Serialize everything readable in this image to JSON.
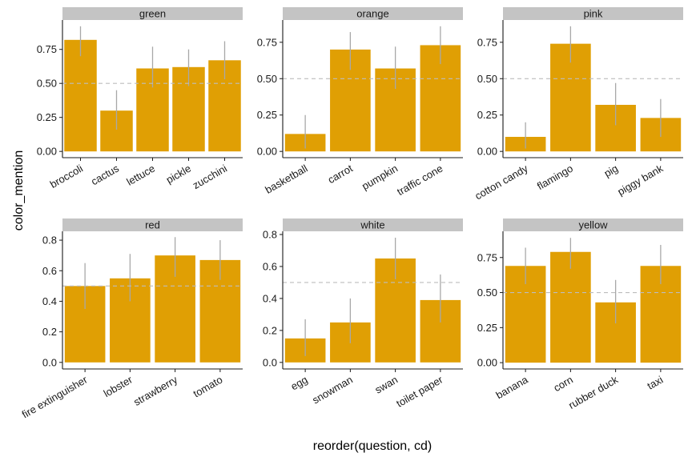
{
  "figure": {
    "xlabel": "reorder(question, cd)",
    "ylabel": "color_mention"
  },
  "colors": {
    "bar": "#E09F04",
    "errorbar": "#A8A8A8",
    "refline": "#BDBDBD",
    "strip": "#C4C4C4",
    "axis": "#1a1a1a"
  },
  "chart_data": [
    {
      "type": "bar",
      "facet": "green",
      "categories": [
        "broccoli",
        "cactus",
        "lettuce",
        "pickle",
        "zucchini"
      ],
      "values": [
        0.82,
        0.3,
        0.61,
        0.62,
        0.67
      ],
      "error_low": [
        0.7,
        0.16,
        0.47,
        0.48,
        0.53
      ],
      "error_high": [
        0.92,
        0.45,
        0.77,
        0.75,
        0.81
      ],
      "reference_line": 0.5,
      "yticks": [
        0.0,
        0.25,
        0.5,
        0.75
      ],
      "ytick_labels": [
        "0.00",
        "0.25",
        "0.50",
        "0.75"
      ],
      "ylim": [
        -0.046,
        0.966
      ]
    },
    {
      "type": "bar",
      "facet": "orange",
      "categories": [
        "basketball",
        "carrot",
        "pumpkin",
        "traffic cone"
      ],
      "values": [
        0.12,
        0.7,
        0.57,
        0.73
      ],
      "error_low": [
        0.02,
        0.56,
        0.43,
        0.6
      ],
      "error_high": [
        0.25,
        0.82,
        0.72,
        0.86
      ],
      "reference_line": 0.5,
      "yticks": [
        0.0,
        0.25,
        0.5,
        0.75
      ],
      "ytick_labels": [
        "0.00",
        "0.25",
        "0.50",
        "0.75"
      ],
      "ylim": [
        -0.043,
        0.903
      ]
    },
    {
      "type": "bar",
      "facet": "pink",
      "categories": [
        "cotton candy",
        "flamingo",
        "pig",
        "piggy bank"
      ],
      "values": [
        0.1,
        0.74,
        0.32,
        0.23
      ],
      "error_low": [
        0.02,
        0.61,
        0.18,
        0.1
      ],
      "error_high": [
        0.2,
        0.86,
        0.47,
        0.36
      ],
      "reference_line": 0.5,
      "yticks": [
        0.0,
        0.25,
        0.5,
        0.75
      ],
      "ytick_labels": [
        "0.00",
        "0.25",
        "0.50",
        "0.75"
      ],
      "ylim": [
        -0.043,
        0.903
      ]
    },
    {
      "type": "bar",
      "facet": "red",
      "categories": [
        "fire extinguisher",
        "lobster",
        "strawberry",
        "tomato"
      ],
      "values": [
        0.5,
        0.55,
        0.7,
        0.67
      ],
      "error_low": [
        0.35,
        0.4,
        0.56,
        0.54
      ],
      "error_high": [
        0.65,
        0.71,
        0.82,
        0.8
      ],
      "reference_line": 0.5,
      "yticks": [
        0.0,
        0.2,
        0.4,
        0.6,
        0.8
      ],
      "ytick_labels": [
        "0.0",
        "0.2",
        "0.4",
        "0.6",
        "0.8"
      ],
      "ylim": [
        -0.043,
        0.858
      ]
    },
    {
      "type": "bar",
      "facet": "white",
      "categories": [
        "egg",
        "snowman",
        "swan",
        "toilet paper"
      ],
      "values": [
        0.15,
        0.25,
        0.65,
        0.39
      ],
      "error_low": [
        0.04,
        0.12,
        0.52,
        0.25
      ],
      "error_high": [
        0.27,
        0.4,
        0.78,
        0.55
      ],
      "reference_line": 0.5,
      "yticks": [
        0.0,
        0.2,
        0.4,
        0.6,
        0.8
      ],
      "ytick_labels": [
        "0.0",
        "0.2",
        "0.4",
        "0.6",
        "0.8"
      ],
      "ylim": [
        -0.041,
        0.82
      ]
    },
    {
      "type": "bar",
      "facet": "yellow",
      "categories": [
        "banana",
        "corn",
        "rubber duck",
        "taxi"
      ],
      "values": [
        0.69,
        0.79,
        0.43,
        0.69
      ],
      "error_low": [
        0.56,
        0.67,
        0.28,
        0.56
      ],
      "error_high": [
        0.82,
        0.89,
        0.59,
        0.84
      ],
      "reference_line": 0.5,
      "yticks": [
        0.0,
        0.25,
        0.5,
        0.75
      ],
      "ytick_labels": [
        "0.00",
        "0.25",
        "0.50",
        "0.75"
      ],
      "ylim": [
        -0.045,
        0.937
      ]
    }
  ]
}
